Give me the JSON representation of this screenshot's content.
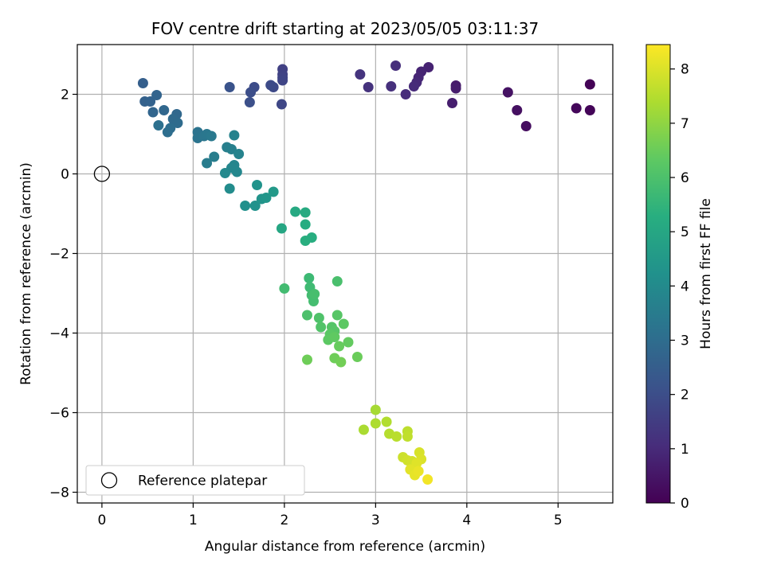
{
  "chart_data": {
    "type": "scatter",
    "title": "FOV centre drift starting at 2023/05/05 03:11:37",
    "xlabel": "Angular distance from reference (arcmin)",
    "ylabel": "Rotation from reference (arcmin)",
    "xlim": [
      -0.27,
      5.6
    ],
    "ylim": [
      -8.27,
      3.25
    ],
    "xticks": [
      0,
      1,
      2,
      3,
      4,
      5
    ],
    "yticks": [
      -8,
      -6,
      -4,
      -2,
      0,
      2
    ],
    "grid": true,
    "legend": {
      "placement": "lower-left",
      "entries": [
        "Reference platepar"
      ]
    },
    "reference_point": {
      "x": 0,
      "y": 0
    },
    "colorbar": {
      "label": "Hours from first FF file",
      "range": [
        0,
        8.45
      ],
      "ticks": [
        0,
        1,
        2,
        3,
        4,
        5,
        6,
        7,
        8
      ],
      "colormap": "viridis"
    },
    "series": [
      {
        "points": [
          [
            5.35,
            2.25,
            0.05
          ],
          [
            5.35,
            1.6,
            0.1
          ],
          [
            5.2,
            1.65,
            0.15
          ],
          [
            4.65,
            1.2,
            0.3
          ],
          [
            4.55,
            1.6,
            0.35
          ],
          [
            4.45,
            2.05,
            0.4
          ],
          [
            3.88,
            2.22,
            0.6
          ],
          [
            3.88,
            2.15,
            0.65
          ],
          [
            3.84,
            1.78,
            0.7
          ],
          [
            3.58,
            2.68,
            0.8
          ],
          [
            3.5,
            2.57,
            0.85
          ],
          [
            3.47,
            2.42,
            0.9
          ],
          [
            3.45,
            2.3,
            0.95
          ],
          [
            3.42,
            2.2,
            1.0
          ],
          [
            3.33,
            2.0,
            1.05
          ],
          [
            3.22,
            2.72,
            1.1
          ],
          [
            3.17,
            2.2,
            1.15
          ],
          [
            2.92,
            2.18,
            1.2
          ],
          [
            2.83,
            2.5,
            1.25
          ],
          [
            1.98,
            2.63,
            1.6
          ],
          [
            1.98,
            2.5,
            1.65
          ],
          [
            1.98,
            2.42,
            1.7
          ],
          [
            1.98,
            2.35,
            1.75
          ],
          [
            1.97,
            1.75,
            1.8
          ],
          [
            1.88,
            2.18,
            1.85
          ],
          [
            1.85,
            2.23,
            1.9
          ],
          [
            1.67,
            2.18,
            1.95
          ],
          [
            1.63,
            2.05,
            2.0
          ],
          [
            1.62,
            1.8,
            2.05
          ],
          [
            1.4,
            2.18,
            2.15
          ],
          [
            0.45,
            2.28,
            2.55
          ],
          [
            0.47,
            1.82,
            2.6
          ],
          [
            0.53,
            1.82,
            2.65
          ],
          [
            0.6,
            1.98,
            2.7
          ],
          [
            0.56,
            1.55,
            2.75
          ],
          [
            0.68,
            1.6,
            2.8
          ],
          [
            0.82,
            1.5,
            2.85
          ],
          [
            0.78,
            1.38,
            2.9
          ],
          [
            0.83,
            1.28,
            2.95
          ],
          [
            0.75,
            1.15,
            3.0
          ],
          [
            0.72,
            1.05,
            3.05
          ],
          [
            0.62,
            1.22,
            3.1
          ],
          [
            1.05,
            1.05,
            3.2
          ],
          [
            1.05,
            0.9,
            3.25
          ],
          [
            1.12,
            0.95,
            3.3
          ],
          [
            1.15,
            1.0,
            3.35
          ],
          [
            1.2,
            0.95,
            3.4
          ],
          [
            1.15,
            0.27,
            3.5
          ],
          [
            1.23,
            0.43,
            3.55
          ],
          [
            1.37,
            0.67,
            3.6
          ],
          [
            1.42,
            0.62,
            3.65
          ],
          [
            1.45,
            0.97,
            3.7
          ],
          [
            1.5,
            0.5,
            3.75
          ],
          [
            1.45,
            0.22,
            3.8
          ],
          [
            1.42,
            0.15,
            3.85
          ],
          [
            1.48,
            0.05,
            3.9
          ],
          [
            1.35,
            0.02,
            3.95
          ],
          [
            1.4,
            -0.37,
            4.05
          ],
          [
            1.57,
            -0.8,
            4.2
          ],
          [
            1.68,
            -0.8,
            4.25
          ],
          [
            1.7,
            -0.28,
            4.3
          ],
          [
            1.75,
            -0.63,
            4.35
          ],
          [
            1.8,
            -0.6,
            4.4
          ],
          [
            1.88,
            -0.45,
            4.5
          ],
          [
            1.97,
            -1.37,
            5.0
          ],
          [
            2.12,
            -0.95,
            5.1
          ],
          [
            2.23,
            -0.97,
            5.15
          ],
          [
            2.23,
            -1.27,
            5.2
          ],
          [
            2.3,
            -1.6,
            5.25
          ],
          [
            2.23,
            -1.68,
            5.3
          ],
          [
            2.27,
            -2.62,
            5.7
          ],
          [
            2.28,
            -2.85,
            5.75
          ],
          [
            2.3,
            -3.05,
            5.8
          ],
          [
            2.32,
            -3.2,
            5.85
          ],
          [
            2.33,
            -3.02,
            5.9
          ],
          [
            2.58,
            -2.7,
            5.95
          ],
          [
            2.0,
            -2.88,
            5.8
          ],
          [
            2.25,
            -3.55,
            6.0
          ],
          [
            2.38,
            -3.62,
            6.05
          ],
          [
            2.4,
            -3.85,
            6.1
          ],
          [
            2.52,
            -3.85,
            6.15
          ],
          [
            2.55,
            -3.95,
            6.2
          ],
          [
            2.5,
            -4.03,
            6.25
          ],
          [
            2.48,
            -4.17,
            6.3
          ],
          [
            2.55,
            -4.1,
            6.35
          ],
          [
            2.58,
            -3.55,
            6.2
          ],
          [
            2.65,
            -3.77,
            6.3
          ],
          [
            2.7,
            -4.23,
            6.4
          ],
          [
            2.6,
            -4.33,
            6.45
          ],
          [
            2.8,
            -4.6,
            6.5
          ],
          [
            2.55,
            -4.63,
            6.55
          ],
          [
            2.62,
            -4.73,
            6.6
          ],
          [
            2.25,
            -4.67,
            6.55
          ],
          [
            3.0,
            -5.93,
            7.3
          ],
          [
            2.87,
            -6.43,
            7.35
          ],
          [
            3.0,
            -6.27,
            7.4
          ],
          [
            3.12,
            -6.23,
            7.45
          ],
          [
            3.15,
            -6.53,
            7.5
          ],
          [
            3.23,
            -6.6,
            7.55
          ],
          [
            3.35,
            -6.47,
            7.6
          ],
          [
            3.35,
            -6.6,
            7.65
          ],
          [
            3.3,
            -7.12,
            7.8
          ],
          [
            3.35,
            -7.2,
            7.85
          ],
          [
            3.4,
            -7.22,
            7.9
          ],
          [
            3.48,
            -7.0,
            7.95
          ],
          [
            3.5,
            -7.17,
            8.0
          ],
          [
            3.45,
            -7.27,
            8.05
          ],
          [
            3.38,
            -7.43,
            8.1
          ],
          [
            3.43,
            -7.57,
            8.15
          ],
          [
            3.47,
            -7.47,
            8.2
          ],
          [
            3.57,
            -7.68,
            8.3
          ]
        ]
      }
    ]
  }
}
